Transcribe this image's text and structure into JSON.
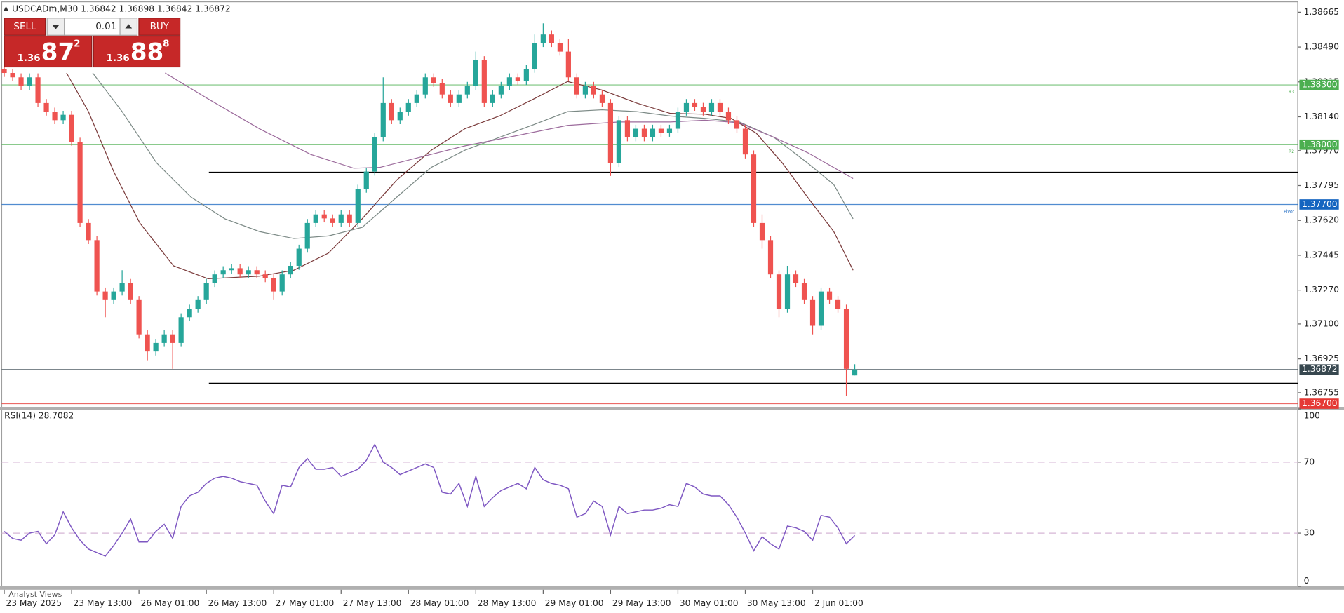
{
  "header": {
    "symbol": "USDCADm,M30",
    "ohlc": [
      1.36842,
      1.36898,
      1.36842,
      1.36872
    ]
  },
  "trade_panel": {
    "sell": "SELL",
    "buy": "BUY",
    "volume": 0.01,
    "bid_prefix": "1.36",
    "bid_pips": "87",
    "bid_point": "2",
    "ask_prefix": "1.36",
    "ask_pips": "88",
    "ask_point": "8"
  },
  "footer": {
    "tab": "Analyst Views"
  },
  "chart_data": {
    "type": "candlestick",
    "up_color": "#26a69a",
    "down_color": "#ef5350",
    "xlim": [
      -0.3,
      153.6
    ],
    "xticks": [
      {
        "value": 0,
        "label": "23 May 2025"
      },
      {
        "value": 8,
        "label": "23 May 13:00"
      },
      {
        "value": 16,
        "label": "26 May 01:00"
      },
      {
        "value": 24,
        "label": "26 May 13:00"
      },
      {
        "value": 32,
        "label": "27 May 01:00"
      },
      {
        "value": 40,
        "label": "27 May 13:00"
      },
      {
        "value": 48,
        "label": "28 May 01:00"
      },
      {
        "value": 56,
        "label": "28 May 13:00"
      },
      {
        "value": 64,
        "label": "29 May 01:00"
      },
      {
        "value": 72,
        "label": "29 May 13:00"
      },
      {
        "value": 80,
        "label": "30 May 01:00"
      },
      {
        "value": 88,
        "label": "30 May 13:00"
      },
      {
        "value": 96,
        "label": "2 Jun 01:00"
      }
    ],
    "ylim": [
      1.36678,
      1.38717
    ],
    "yticks": [
      1.36755,
      1.36925,
      {
        "value": 1.371,
        "label": "1.37100"
      },
      {
        "value": 1.3727,
        "label": "1.37270"
      },
      1.37445,
      {
        "value": 1.3762,
        "label": "1.37620"
      },
      1.37795,
      {
        "value": 1.3797,
        "label": "1.37970"
      },
      {
        "value": 1.3814,
        "label": "1.38140"
      },
      1.38315,
      {
        "value": 1.3849,
        "label": "1.38490"
      },
      1.38665
    ],
    "open": [
      1.3838,
      1.3836,
      1.38338,
      1.38295,
      1.38338,
      1.38209,
      1.38166,
      1.38123,
      1.3815,
      1.38015,
      1.37607,
      1.37521,
      1.37263,
      1.3722,
      1.37263,
      1.37306,
      1.3722,
      1.37048,
      1.36962,
      1.37005,
      1.37048,
      1.37005,
      1.37134,
      1.37177,
      1.3722,
      1.37306,
      1.37349,
      1.3737,
      1.3738,
      1.37349,
      1.3737,
      1.37349,
      1.3733,
      1.37263,
      1.37349,
      1.37392,
      1.37478,
      1.37607,
      1.3765,
      1.3763,
      1.37607,
      1.3765,
      1.37607,
      1.37779,
      1.37865,
      1.38037,
      1.38209,
      1.38123,
      1.38166,
      1.38209,
      1.38252,
      1.38338,
      1.3831,
      1.38252,
      1.38209,
      1.38252,
      1.38295,
      1.38424,
      1.38209,
      1.38252,
      1.38295,
      1.38338,
      1.3832,
      1.38381,
      1.3851,
      1.38553,
      1.3851,
      1.38467,
      1.38338,
      1.38252,
      1.38295,
      1.38252,
      1.38209,
      1.37908,
      1.38123,
      1.38037,
      1.3808,
      1.38037,
      1.3808,
      1.3806,
      1.3808,
      1.38166,
      1.38209,
      1.3819,
      1.38166,
      1.38209,
      1.38166,
      1.38123,
      1.3808,
      1.37951,
      1.37607,
      1.37521,
      1.37349,
      1.37177,
      1.37349,
      1.37306,
      1.3722,
      1.37091,
      1.37263,
      1.3722,
      1.37177,
      1.36842
    ],
    "high": [
      1.384,
      1.3838,
      1.38358,
      1.38358,
      1.38358,
      1.38229,
      1.38186,
      1.3817,
      1.3817,
      1.38035,
      1.37627,
      1.37541,
      1.37283,
      1.37283,
      1.3737,
      1.37326,
      1.3724,
      1.37068,
      1.37025,
      1.37068,
      1.37068,
      1.37154,
      1.37197,
      1.3724,
      1.37326,
      1.37369,
      1.3739,
      1.374,
      1.374,
      1.3739,
      1.3739,
      1.37369,
      1.3735,
      1.37369,
      1.37412,
      1.37498,
      1.37627,
      1.3767,
      1.3767,
      1.3765,
      1.3767,
      1.3767,
      1.37799,
      1.37885,
      1.38057,
      1.38338,
      1.38229,
      1.38186,
      1.38229,
      1.38272,
      1.38358,
      1.38358,
      1.3833,
      1.38272,
      1.38272,
      1.38315,
      1.38467,
      1.38444,
      1.38272,
      1.38315,
      1.38358,
      1.38358,
      1.38401,
      1.38553,
      1.38609,
      1.38573,
      1.3853,
      1.3853,
      1.38358,
      1.38315,
      1.38315,
      1.38272,
      1.38229,
      1.38143,
      1.38143,
      1.381,
      1.381,
      1.381,
      1.381,
      1.381,
      1.38186,
      1.38229,
      1.38229,
      1.3821,
      1.38229,
      1.38229,
      1.38186,
      1.38143,
      1.381,
      1.37971,
      1.3765,
      1.37541,
      1.37369,
      1.37392,
      1.37369,
      1.37326,
      1.3724,
      1.37283,
      1.37283,
      1.3724,
      1.37197,
      1.36898
    ],
    "low": [
      1.3834,
      1.38318,
      1.38275,
      1.38275,
      1.38189,
      1.38146,
      1.38103,
      1.38103,
      1.37995,
      1.37587,
      1.37501,
      1.37243,
      1.37134,
      1.372,
      1.37243,
      1.372,
      1.37028,
      1.36918,
      1.36942,
      1.36985,
      1.36875,
      1.36985,
      1.37114,
      1.37157,
      1.372,
      1.37286,
      1.37329,
      1.3735,
      1.37329,
      1.37329,
      1.37329,
      1.3731,
      1.3722,
      1.37243,
      1.37329,
      1.37372,
      1.37458,
      1.37587,
      1.3761,
      1.37587,
      1.37587,
      1.37587,
      1.37587,
      1.37759,
      1.37845,
      1.38017,
      1.38103,
      1.38103,
      1.38146,
      1.38189,
      1.38232,
      1.3829,
      1.38232,
      1.38189,
      1.38189,
      1.38232,
      1.38275,
      1.38189,
      1.38189,
      1.38232,
      1.38275,
      1.383,
      1.383,
      1.38361,
      1.3849,
      1.3849,
      1.38447,
      1.38318,
      1.38232,
      1.38232,
      1.38232,
      1.38189,
      1.37843,
      1.37888,
      1.38017,
      1.38017,
      1.38017,
      1.38017,
      1.3804,
      1.3804,
      1.3806,
      1.38146,
      1.3817,
      1.38146,
      1.38146,
      1.38146,
      1.38103,
      1.3806,
      1.37931,
      1.37587,
      1.37478,
      1.37329,
      1.37134,
      1.37157,
      1.37286,
      1.372,
      1.37048,
      1.37071,
      1.372,
      1.37157,
      1.36738,
      1.36842
    ],
    "close": [
      1.3836,
      1.38338,
      1.38295,
      1.38338,
      1.38209,
      1.38166,
      1.38123,
      1.3815,
      1.38015,
      1.37607,
      1.37521,
      1.37263,
      1.3722,
      1.37263,
      1.37306,
      1.3722,
      1.37048,
      1.36962,
      1.37005,
      1.37048,
      1.37005,
      1.37134,
      1.37177,
      1.3722,
      1.37306,
      1.37349,
      1.3737,
      1.3738,
      1.37349,
      1.3737,
      1.37349,
      1.3733,
      1.37263,
      1.37349,
      1.37392,
      1.37478,
      1.37607,
      1.3765,
      1.3763,
      1.37607,
      1.3765,
      1.37607,
      1.37779,
      1.37865,
      1.38037,
      1.38209,
      1.38123,
      1.38166,
      1.38209,
      1.38252,
      1.38338,
      1.3831,
      1.38252,
      1.38209,
      1.38252,
      1.38295,
      1.38424,
      1.38209,
      1.38252,
      1.38295,
      1.38338,
      1.3832,
      1.38381,
      1.3851,
      1.38553,
      1.3851,
      1.38467,
      1.38338,
      1.38252,
      1.38295,
      1.38252,
      1.38209,
      1.37908,
      1.38123,
      1.38037,
      1.3808,
      1.38037,
      1.3808,
      1.3806,
      1.3808,
      1.38166,
      1.38209,
      1.3819,
      1.38166,
      1.38209,
      1.38166,
      1.38123,
      1.3808,
      1.37951,
      1.37607,
      1.37521,
      1.37349,
      1.37177,
      1.37349,
      1.37306,
      1.3722,
      1.37091,
      1.37263,
      1.3722,
      1.37177,
      1.36875,
      1.36872
    ],
    "moving_averages": [
      {
        "color": "#7a3a3a",
        "x": [
          7.4,
          10.0,
          13.0,
          16.1,
          20.1,
          24.2,
          30.3,
          34.4,
          38.5,
          42.5,
          46.6,
          50.7,
          54.7,
          58.8,
          62.9,
          66.9,
          71.0,
          75.1,
          79.1,
          83.2,
          86.3,
          89.3,
          92.4,
          95.4,
          98.5,
          100.8
        ],
        "values": [
          1.3836,
          1.38166,
          1.37865,
          1.37607,
          1.37392,
          1.37327,
          1.3734,
          1.3737,
          1.37456,
          1.37628,
          1.37822,
          1.37972,
          1.3808,
          1.38144,
          1.3823,
          1.38317,
          1.38274,
          1.38209,
          1.38157,
          1.38153,
          1.38132,
          1.38058,
          1.37908,
          1.37736,
          1.37564,
          1.3737
        ]
      },
      {
        "color": "#7c8a86",
        "x": [
          10.5,
          14.0,
          18.1,
          22.2,
          26.2,
          30.3,
          34.4,
          38.5,
          42.5,
          46.6,
          50.7,
          54.7,
          58.8,
          62.9,
          66.9,
          71.0,
          75.1,
          79.1,
          83.2,
          87.3,
          91.4,
          95.4,
          98.5,
          100.8
        ],
        "values": [
          1.3836,
          1.38166,
          1.37908,
          1.37736,
          1.37628,
          1.37564,
          1.37529,
          1.37542,
          1.37585,
          1.37736,
          1.37886,
          1.37972,
          1.38037,
          1.38101,
          1.38166,
          1.38175,
          1.38166,
          1.38144,
          1.38132,
          1.38114,
          1.38037,
          1.37908,
          1.378,
          1.37628
        ]
      },
      {
        "color": "#9c6b9c",
        "x": [
          19.1,
          24.2,
          30.3,
          36.4,
          41.5,
          44.6,
          48.6,
          54.7,
          60.8,
          66.9,
          73.0,
          79.1,
          83.2,
          87.3,
          91.4,
          95.4,
          100.8
        ],
        "values": [
          1.3836,
          1.3823,
          1.3808,
          1.37951,
          1.37882,
          1.37886,
          1.37929,
          1.37994,
          1.38045,
          1.38097,
          1.38114,
          1.38114,
          1.38123,
          1.3811,
          1.38037,
          1.3796,
          1.3783
        ]
      }
    ],
    "levels": [
      {
        "value": 1.383,
        "label": "1.38300",
        "color": "#4caf50",
        "tag": "R3"
      },
      {
        "value": 1.38,
        "label": "1.38000",
        "color": "#4caf50",
        "tag": "R2"
      },
      {
        "value": 1.377,
        "label": "1.37700",
        "color": "#1565c0",
        "tag": "Pivot"
      },
      {
        "value": 1.36872,
        "label": "1.36872",
        "color": "#37474f"
      },
      {
        "value": 1.367,
        "label": "1.36700",
        "color": "#e53935"
      }
    ],
    "trendlines": [
      {
        "value": 1.37861,
        "x_start": 24.3,
        "color": "#000000"
      },
      {
        "value": 1.36802,
        "x_start": 24.3,
        "color": "#000000"
      }
    ],
    "rsi": {
      "title": "RSI(14) 28.7082",
      "color": "#7e57c2",
      "ylim": [
        0,
        100
      ],
      "yticks": [
        0,
        30,
        70,
        100
      ],
      "levels": [
        30,
        70
      ],
      "values": [
        31,
        27,
        26,
        30,
        31,
        24,
        29,
        42,
        33,
        26,
        21,
        19,
        17,
        23,
        30,
        38,
        25,
        25,
        31,
        35,
        27,
        45,
        51,
        53,
        58,
        61,
        62,
        61,
        59,
        58,
        57,
        48,
        41,
        57,
        56,
        67,
        72,
        66,
        66,
        67,
        62,
        64,
        66,
        71,
        80,
        70,
        67,
        63,
        65,
        67,
        69,
        67,
        53,
        52,
        58,
        45,
        62,
        45,
        50,
        54,
        56,
        58,
        55,
        67,
        60,
        58,
        57,
        55,
        39,
        41,
        48,
        45,
        29,
        45,
        41,
        42,
        43,
        43,
        44,
        46,
        45,
        58,
        56,
        52,
        51,
        51,
        46,
        39,
        30,
        20,
        28,
        24,
        21,
        34,
        33,
        31,
        26,
        40,
        39,
        33,
        24,
        28.7082
      ]
    }
  }
}
